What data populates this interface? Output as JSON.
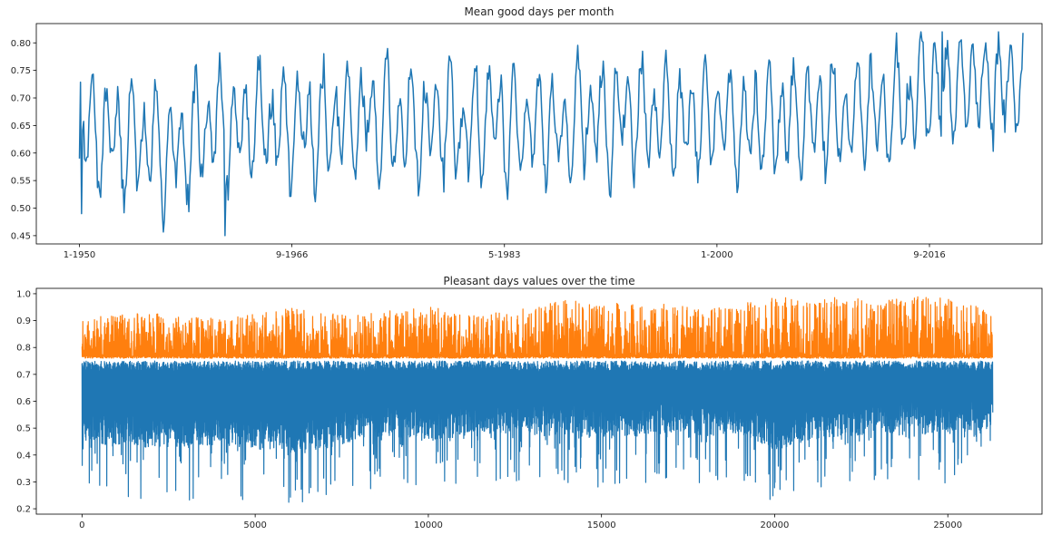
{
  "chart_data": [
    {
      "type": "line",
      "title": "Mean good days per month",
      "xlabel": "",
      "ylabel": "",
      "x_ticks": [
        "1-1950",
        "9-1966",
        "5-1983",
        "1-2000",
        "9-2016"
      ],
      "x_tick_index": [
        0,
        200,
        400,
        600,
        800
      ],
      "ylim": [
        0.435,
        0.835
      ],
      "y_ticks": [
        "0.45",
        "0.50",
        "0.55",
        "0.60",
        "0.65",
        "0.70",
        "0.75",
        "0.80"
      ],
      "grid": false,
      "series": [
        {
          "color": "#1f77b4",
          "index": [
            0,
            10,
            20,
            30,
            40,
            50,
            60,
            70,
            80,
            90,
            100,
            110,
            120,
            130,
            140,
            150,
            160,
            170,
            180,
            190,
            200,
            210,
            220,
            230,
            240,
            250,
            260,
            270,
            280,
            290,
            300,
            310,
            320,
            330,
            340,
            350,
            360,
            370,
            380,
            390,
            400,
            410,
            420,
            430,
            440,
            450,
            460,
            470,
            480,
            490,
            500,
            510,
            520,
            530,
            540,
            550,
            560,
            570,
            580,
            590,
            600,
            610,
            620,
            630,
            640,
            650,
            660,
            670,
            680,
            690,
            700,
            710,
            720,
            730,
            740,
            750,
            760,
            770,
            780,
            790,
            800,
            810,
            820,
            830,
            840,
            850,
            860,
            870,
            880,
            890
          ],
          "values": [
            0.59,
            0.73,
            0.52,
            0.72,
            0.48,
            0.71,
            0.47,
            0.7,
            0.46,
            0.65,
            0.45,
            0.72,
            0.52,
            0.76,
            0.55,
            0.73,
            0.54,
            0.77,
            0.55,
            0.74,
            0.56,
            0.75,
            0.52,
            0.72,
            0.57,
            0.77,
            0.55,
            0.78,
            0.56,
            0.77,
            0.53,
            0.76,
            0.52,
            0.74,
            0.56,
            0.75,
            0.52,
            0.73,
            0.55,
            0.76,
            0.5,
            0.72,
            0.54,
            0.7,
            0.56,
            0.67,
            0.53,
            0.76,
            0.56,
            0.75,
            0.52,
            0.76,
            0.57,
            0.75,
            0.58,
            0.74,
            0.55,
            0.73,
            0.54,
            0.71,
            0.56,
            0.72,
            0.51,
            0.7,
            0.55,
            0.71,
            0.52,
            0.74,
            0.55,
            0.73,
            0.57,
            0.74,
            0.56,
            0.73,
            0.6,
            0.74,
            0.55,
            0.75,
            0.59,
            0.82,
            0.7,
            0.8,
            0.69,
            0.79,
            0.7,
            0.8,
            0.71,
            0.81,
            0.72,
            0.76
          ]
        }
      ]
    },
    {
      "type": "line",
      "title": "Pleasant days values over the time",
      "xlabel": "",
      "ylabel": "",
      "x_ticks": [
        "0",
        "5000",
        "10000",
        "15000",
        "20000",
        "25000"
      ],
      "x_tick_values": [
        0,
        5000,
        10000,
        15000,
        20000,
        25000
      ],
      "xlim": [
        -1320,
        27720
      ],
      "ylim": [
        0.18,
        1.02
      ],
      "y_ticks": [
        "0.2",
        "0.3",
        "0.4",
        "0.5",
        "0.6",
        "0.7",
        "0.8",
        "0.9",
        "1.0"
      ],
      "grid": false,
      "series": [
        {
          "color": "#1f77b4",
          "x": [
            0,
            1000,
            2000,
            3000,
            4000,
            5000,
            6000,
            7000,
            8000,
            9000,
            10000,
            11000,
            12000,
            13000,
            14000,
            15000,
            16000,
            17000,
            18000,
            19000,
            20000,
            21000,
            22000,
            23000,
            24000,
            25000,
            26300
          ],
          "upper": [
            0.75,
            0.75,
            0.75,
            0.75,
            0.75,
            0.75,
            0.75,
            0.75,
            0.75,
            0.75,
            0.75,
            0.75,
            0.75,
            0.75,
            0.75,
            0.75,
            0.75,
            0.75,
            0.75,
            0.75,
            0.75,
            0.75,
            0.75,
            0.75,
            0.75,
            0.75,
            0.75
          ],
          "lower": [
            0.24,
            0.23,
            0.23,
            0.23,
            0.24,
            0.23,
            0.22,
            0.22,
            0.26,
            0.28,
            0.25,
            0.28,
            0.3,
            0.3,
            0.29,
            0.27,
            0.28,
            0.3,
            0.28,
            0.31,
            0.22,
            0.25,
            0.28,
            0.3,
            0.3,
            0.27,
            0.45
          ],
          "typical_low": [
            0.45,
            0.43,
            0.42,
            0.43,
            0.44,
            0.42,
            0.41,
            0.42,
            0.46,
            0.47,
            0.45,
            0.47,
            0.48,
            0.48,
            0.47,
            0.46,
            0.47,
            0.48,
            0.47,
            0.48,
            0.42,
            0.45,
            0.47,
            0.48,
            0.48,
            0.47,
            0.5
          ]
        },
        {
          "color": "#ff7f0e",
          "x": [
            0,
            1000,
            2000,
            3000,
            4000,
            5000,
            6000,
            7000,
            8000,
            9000,
            10000,
            11000,
            12000,
            13000,
            14000,
            15000,
            16000,
            17000,
            18000,
            19000,
            20000,
            21000,
            22000,
            23000,
            24000,
            25000,
            26300
          ],
          "upper": [
            0.91,
            0.92,
            0.93,
            0.91,
            0.92,
            0.93,
            0.95,
            0.93,
            0.92,
            0.94,
            0.95,
            0.94,
            0.93,
            0.95,
            0.98,
            0.96,
            0.97,
            0.96,
            0.94,
            0.96,
            0.99,
            0.98,
            0.99,
            0.97,
            1.0,
            0.98,
            0.94
          ],
          "lower": [
            0.76,
            0.76,
            0.76,
            0.76,
            0.76,
            0.76,
            0.76,
            0.76,
            0.76,
            0.76,
            0.76,
            0.76,
            0.76,
            0.76,
            0.76,
            0.76,
            0.76,
            0.76,
            0.76,
            0.76,
            0.76,
            0.76,
            0.76,
            0.76,
            0.76,
            0.76,
            0.76
          ]
        }
      ]
    }
  ]
}
